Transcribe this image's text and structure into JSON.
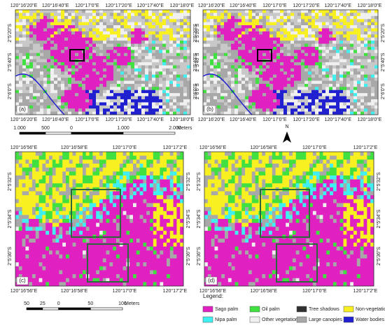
{
  "panels": [
    {
      "label": "(a)",
      "top": [
        "120°16'20\"E",
        "120°16'40\"E",
        "120°17'0\"E",
        "120°17'20\"E",
        "120°17'40\"E",
        "120°18'0\"E"
      ],
      "bottom": [
        "120°16'20\"E",
        "120°16'40\"E",
        "120°17'0\"E",
        "120°17'20\"E",
        "120°17'40\"E",
        "120°18'0\"E"
      ],
      "left": [
        "2°5'20\"S",
        "2°5'40\"S",
        "2°6'0\"S"
      ],
      "right": [
        "2°5'20\"S",
        "2°5'40\"S",
        "2°6'0\"S"
      ]
    },
    {
      "label": "(b)",
      "top": [
        "120°16'20\"E",
        "120°16'40\"E",
        "120°17'0\"E",
        "120°17'20\"E",
        "120°17'40\"E",
        "120°18'0\"E"
      ],
      "bottom": [
        "120°16'20\"E",
        "120°16'40\"E",
        "120°17'0\"E",
        "120°17'20\"E",
        "120°17'40\"E",
        "120°18'0\"E"
      ],
      "left": [
        "2°5'20\"S",
        "2°5'40\"S",
        "2°6'0\"S"
      ],
      "right": [
        "2°5'20\"S",
        "2°5'40\"S",
        "2°6'0\"S"
      ]
    },
    {
      "label": "(c)",
      "top": [
        "120°16'56\"E",
        "120°16'58\"E",
        "120°17'0\"E",
        "120°17'2\"E"
      ],
      "bottom": [
        "120°16'56\"E",
        "120°16'58\"E",
        "120°17'0\"E",
        "120°17'2\"E"
      ],
      "left": [
        "2°5'32\"S",
        "2°5'34\"S",
        "2°5'36\"S"
      ],
      "right": [
        "2°5'32\"S",
        "2°5'34\"S",
        "2°5'36\"S"
      ]
    },
    {
      "label": "(d)",
      "top": [
        "120°16'56\"E",
        "120°16'58\"E",
        "120°17'0\"E",
        "120°17'2\"E"
      ],
      "bottom": [
        "120°16'56\"E",
        "120°16'58\"E",
        "120°17'0\"E",
        "120°17'2\"E"
      ],
      "left": [
        "2°5'32\"S",
        "2°5'34\"S",
        "2°5'36\"S"
      ],
      "right": [
        "2°5'32\"S",
        "2°5'34\"S",
        "2°5'36\"S"
      ]
    }
  ],
  "scale_bars": [
    {
      "labels": [
        "1.000",
        "500",
        "0",
        "1.000",
        "2.000"
      ],
      "unit": "Meters"
    },
    {
      "labels": [
        "50",
        "25",
        "0",
        "50",
        "100"
      ],
      "unit": "Meters"
    }
  ],
  "north": "N",
  "legend": {
    "title": "Legend:",
    "items": [
      {
        "name": "Sago palm",
        "color": "#e020c0"
      },
      {
        "name": "Oil palm",
        "color": "#40e040"
      },
      {
        "name": "Tree shadows",
        "color": "#303030"
      },
      {
        "name": "Non-vegetation",
        "color": "#f8f020"
      },
      {
        "name": "Nipa palm",
        "color": "#40f0f0"
      },
      {
        "name": "Other vegetations",
        "color": "#f0f0f0"
      },
      {
        "name": "Large canopies",
        "color": "#a8a8a8"
      },
      {
        "name": "Water bodies",
        "color": "#2020d0"
      }
    ]
  }
}
